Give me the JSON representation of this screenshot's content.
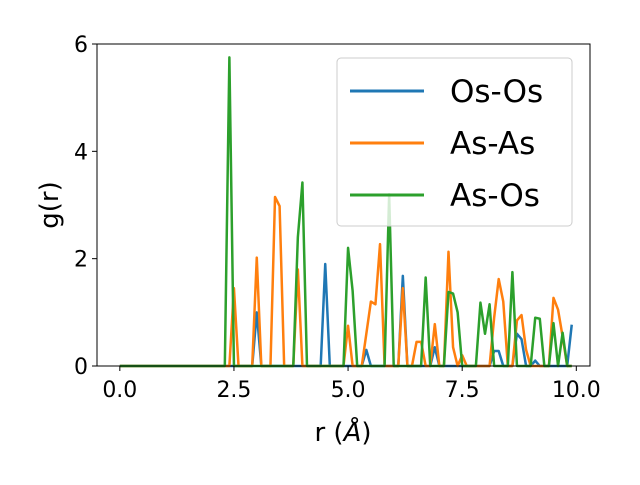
{
  "chart_data": {
    "type": "line",
    "xlabel": "r (",
    "xlabel_unit": "Å",
    "xlabel_close": ")",
    "ylabel": "g(r)",
    "xlim": [
      -0.5,
      10.3
    ],
    "ylim": [
      0,
      6
    ],
    "xticks": [
      0.0,
      2.5,
      5.0,
      7.5,
      10.0
    ],
    "xtick_labels": [
      "0.0",
      "2.5",
      "5.0",
      "7.5",
      "10.0"
    ],
    "yticks": [
      0,
      2,
      4,
      6
    ],
    "ytick_labels": [
      "0",
      "2",
      "4",
      "6"
    ],
    "grid": false,
    "legend_position": "top-right",
    "x": [
      0.0,
      0.1,
      0.2,
      0.3,
      0.4,
      0.5,
      0.6,
      0.7,
      0.8,
      0.9,
      1.0,
      1.1,
      1.2,
      1.3,
      1.4,
      1.5,
      1.6,
      1.7,
      1.8,
      1.9,
      2.0,
      2.1,
      2.2,
      2.3,
      2.4,
      2.5,
      2.6,
      2.7,
      2.8,
      2.9,
      3.0,
      3.1,
      3.2,
      3.3,
      3.4,
      3.5,
      3.6,
      3.7,
      3.8,
      3.9,
      4.0,
      4.1,
      4.2,
      4.3,
      4.4,
      4.5,
      4.6,
      4.7,
      4.8,
      4.9,
      5.0,
      5.1,
      5.2,
      5.3,
      5.4,
      5.5,
      5.6,
      5.7,
      5.8,
      5.9,
      6.0,
      6.1,
      6.2,
      6.3,
      6.4,
      6.5,
      6.6,
      6.7,
      6.8,
      6.9,
      7.0,
      7.1,
      7.2,
      7.3,
      7.4,
      7.5,
      7.6,
      7.7,
      7.8,
      7.9,
      8.0,
      8.1,
      8.2,
      8.3,
      8.4,
      8.5,
      8.6,
      8.7,
      8.8,
      8.9,
      9.0,
      9.1,
      9.2,
      9.3,
      9.4,
      9.5,
      9.6,
      9.7,
      9.8,
      9.9
    ],
    "series": [
      {
        "name": "Os-Os",
        "color": "#1f77b4",
        "values": [
          0,
          0,
          0,
          0,
          0,
          0,
          0,
          0,
          0,
          0,
          0,
          0,
          0,
          0,
          0,
          0,
          0,
          0,
          0,
          0,
          0,
          0,
          0,
          0,
          0,
          0,
          0,
          0,
          0,
          0,
          1.0,
          0,
          0,
          0,
          0,
          0,
          0,
          0,
          0,
          0,
          0,
          0,
          0,
          0,
          0,
          1.9,
          0,
          0,
          0,
          0,
          0,
          0,
          0,
          0,
          0.3,
          0,
          0,
          0,
          0,
          0,
          0,
          0,
          1.68,
          0,
          0,
          0,
          0,
          0,
          0,
          0.35,
          0,
          0,
          0,
          0,
          0,
          0,
          0,
          0,
          0,
          0,
          0,
          0,
          0.28,
          0.28,
          0,
          0,
          0,
          0.6,
          0.5,
          0,
          0,
          0.1,
          0,
          0,
          0,
          0,
          0,
          0,
          0,
          0.77
        ]
      },
      {
        "name": "As-As",
        "color": "#ff7f0e",
        "values": [
          0,
          0,
          0,
          0,
          0,
          0,
          0,
          0,
          0,
          0,
          0,
          0,
          0,
          0,
          0,
          0,
          0,
          0,
          0,
          0,
          0,
          0,
          0,
          0,
          0,
          1.45,
          0,
          0,
          0,
          0,
          2.02,
          0,
          0,
          0,
          3.15,
          2.98,
          0,
          0,
          0,
          1.8,
          0,
          0,
          0,
          0,
          0,
          0,
          0,
          0,
          0,
          0,
          0.75,
          0,
          0,
          0,
          0.6,
          1.2,
          1.15,
          2.27,
          0,
          0,
          0,
          0,
          1.45,
          0,
          0,
          0.45,
          0.45,
          0,
          0,
          0.78,
          0,
          0,
          2.13,
          0.35,
          0,
          0.2,
          0,
          0,
          0,
          0,
          0,
          0,
          0.9,
          1.62,
          1.2,
          0,
          0,
          0.85,
          0.95,
          0.3,
          0,
          0,
          0,
          0,
          0,
          1.27,
          1.05,
          0.55,
          0,
          0
        ]
      },
      {
        "name": "As-Os",
        "color": "#2ca02c",
        "values": [
          0,
          0,
          0,
          0,
          0,
          0,
          0,
          0,
          0,
          0,
          0,
          0,
          0,
          0,
          0,
          0,
          0,
          0,
          0,
          0,
          0,
          0,
          0,
          0,
          5.75,
          0,
          0,
          0,
          0,
          0,
          0,
          0,
          0,
          0,
          0,
          0,
          0,
          0,
          0,
          2.4,
          3.42,
          0,
          0,
          0,
          0,
          0,
          0,
          0,
          0,
          0,
          2.2,
          1.4,
          0,
          0,
          0,
          0,
          0,
          0,
          0,
          3.2,
          0,
          0,
          0,
          0,
          0,
          0,
          0,
          1.65,
          0,
          0,
          0,
          0,
          1.38,
          1.35,
          1.0,
          0,
          0,
          0,
          0,
          1.18,
          0.6,
          1.15,
          0,
          0,
          0,
          0,
          1.75,
          0,
          0,
          0,
          0,
          0.9,
          0.88,
          0,
          0,
          0.8,
          0,
          0.62,
          0,
          0
        ]
      }
    ]
  }
}
